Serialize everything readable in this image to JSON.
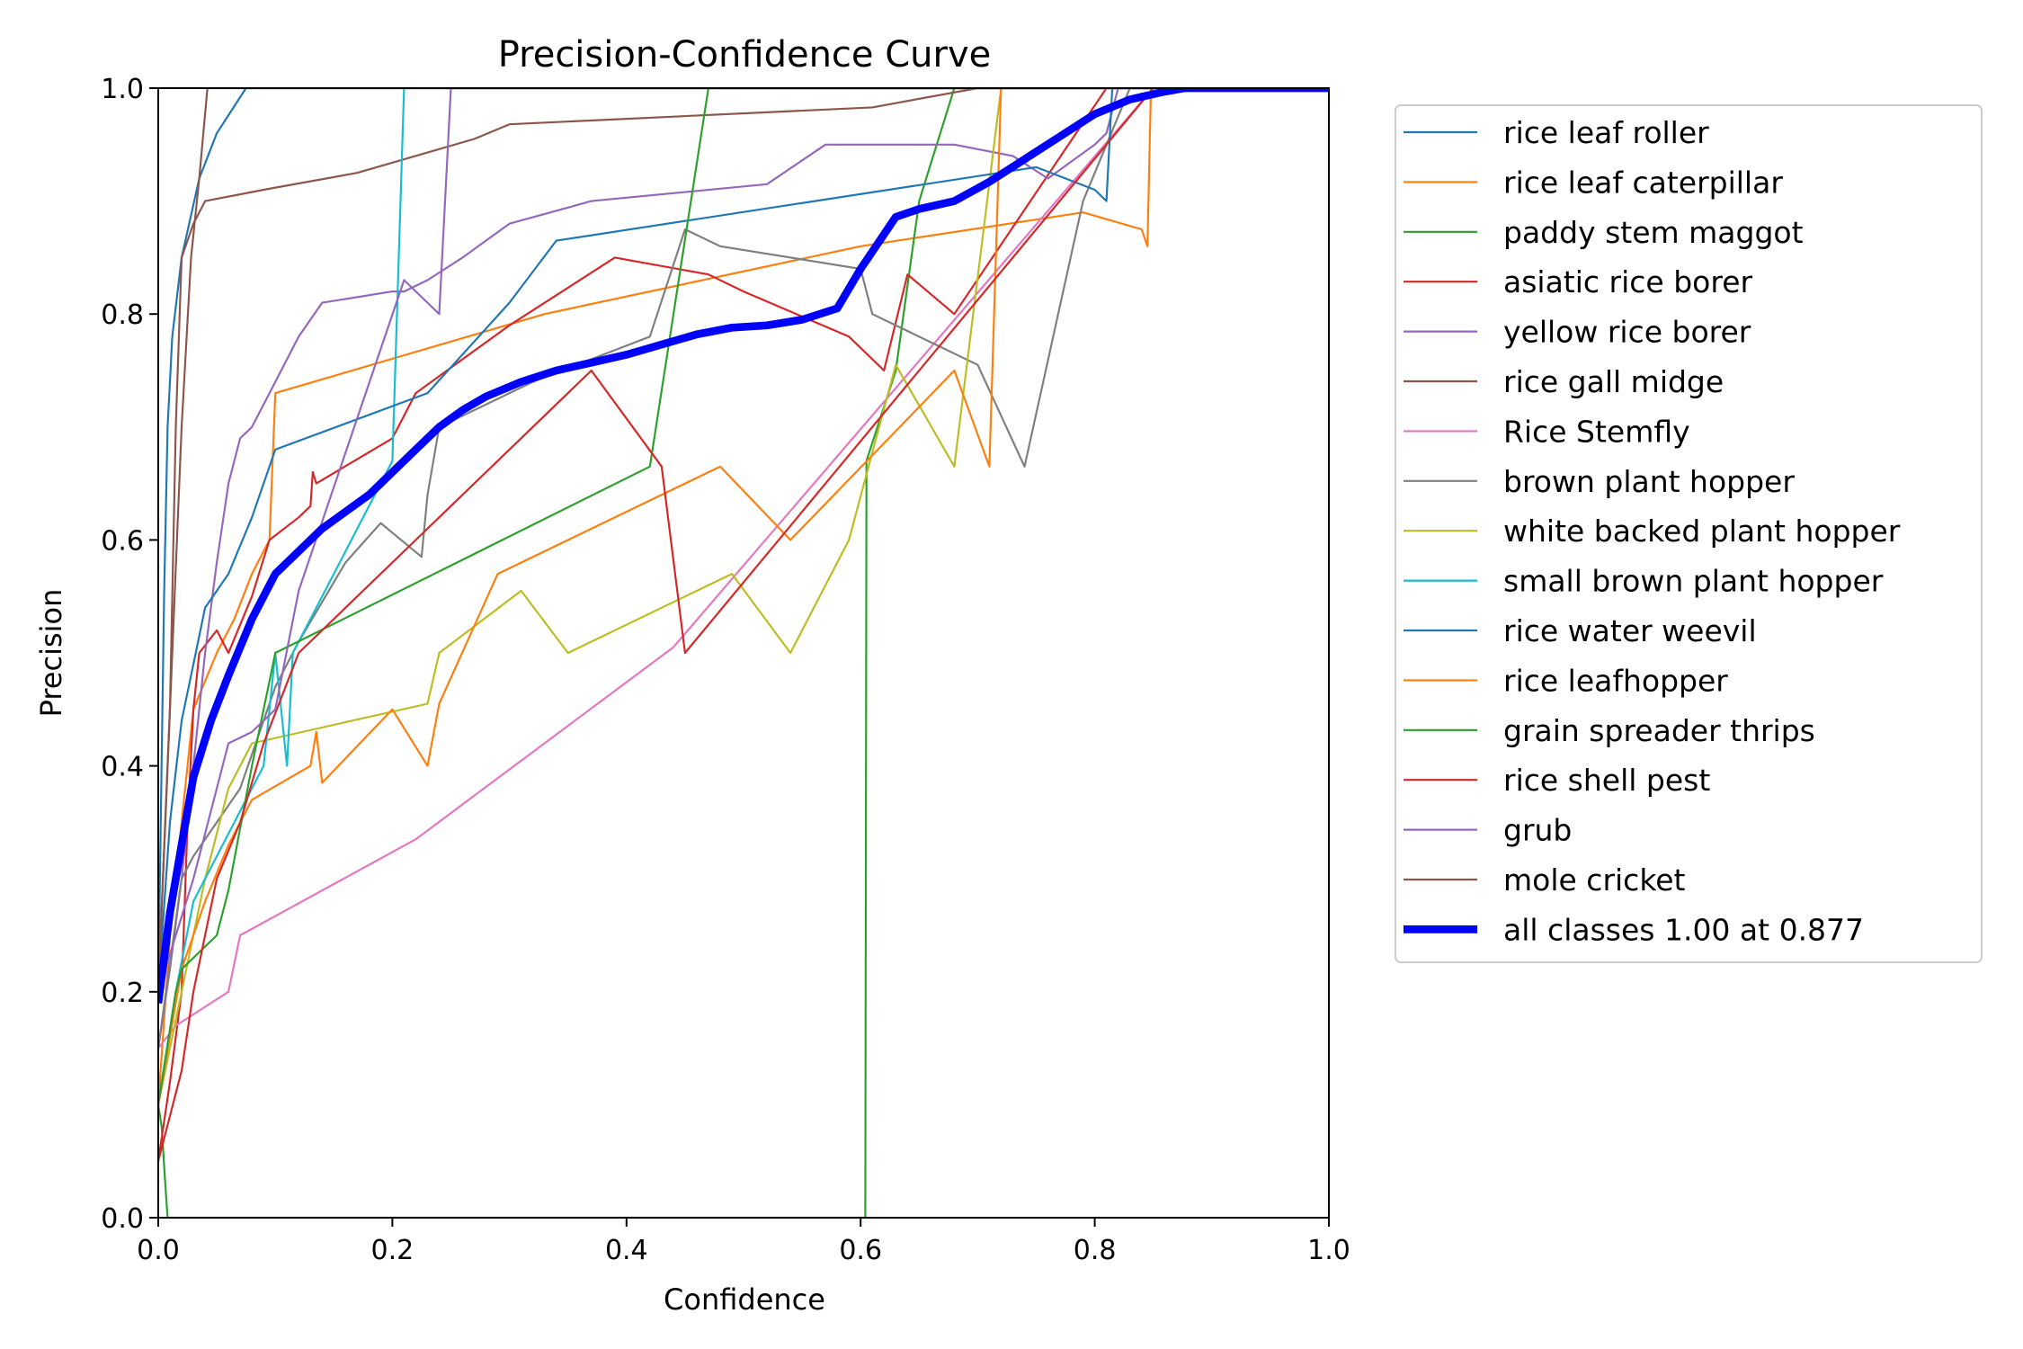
{
  "chart_data": {
    "type": "line",
    "title": "Precision-Confidence Curve",
    "xlabel": "Confidence",
    "ylabel": "Precision",
    "xlim": [
      0,
      1
    ],
    "ylim": [
      0,
      1
    ],
    "xticks": [
      "0.0",
      "0.2",
      "0.4",
      "0.6",
      "0.8",
      "1.0"
    ],
    "yticks": [
      "0.0",
      "0.2",
      "0.4",
      "0.6",
      "0.8",
      "1.0"
    ],
    "grid": false,
    "legend_position": "outside-right",
    "series": [
      {
        "name": "rice leaf roller",
        "color": "#1f77b4",
        "width": 1.5,
        "points": [
          [
            0,
            0.2
          ],
          [
            0.005,
            0.55
          ],
          [
            0.008,
            0.7
          ],
          [
            0.012,
            0.78
          ],
          [
            0.02,
            0.85
          ],
          [
            0.035,
            0.92
          ],
          [
            0.05,
            0.96
          ],
          [
            0.075,
            1.0
          ],
          [
            1,
            1.0
          ]
        ]
      },
      {
        "name": "rice leaf caterpillar",
        "color": "#ff7f0e",
        "width": 1.5,
        "points": [
          [
            0,
            0.1
          ],
          [
            0.01,
            0.25
          ],
          [
            0.02,
            0.35
          ],
          [
            0.03,
            0.45
          ],
          [
            0.05,
            0.5
          ],
          [
            0.065,
            0.53
          ],
          [
            0.08,
            0.57
          ],
          [
            0.095,
            0.6
          ],
          [
            0.1,
            0.73
          ],
          [
            0.33,
            0.8
          ],
          [
            0.6,
            0.86
          ],
          [
            0.79,
            0.89
          ],
          [
            0.84,
            0.875
          ],
          [
            0.845,
            0.86
          ],
          [
            0.848,
            1.0
          ],
          [
            1,
            1.0
          ]
        ]
      },
      {
        "name": "paddy stem maggot",
        "color": "#2ca02c",
        "width": 1.5,
        "points": [
          [
            0,
            0.1
          ],
          [
            0.003,
            0.08
          ],
          [
            0.006,
            0.03
          ],
          [
            0.008,
            0.0
          ],
          [
            0.604,
            0.0
          ],
          [
            0.605,
            0.67
          ],
          [
            0.63,
            0.75
          ],
          [
            0.65,
            0.9
          ],
          [
            0.68,
            1.0
          ],
          [
            1,
            1.0
          ]
        ]
      },
      {
        "name": "asiatic rice borer",
        "color": "#d62728",
        "width": 1.5,
        "points": [
          [
            0,
            0.05
          ],
          [
            0.01,
            0.12
          ],
          [
            0.02,
            0.2
          ],
          [
            0.025,
            0.35
          ],
          [
            0.03,
            0.45
          ],
          [
            0.035,
            0.5
          ],
          [
            0.05,
            0.52
          ],
          [
            0.06,
            0.5
          ],
          [
            0.08,
            0.55
          ],
          [
            0.095,
            0.6
          ],
          [
            0.12,
            0.62
          ],
          [
            0.13,
            0.63
          ],
          [
            0.132,
            0.66
          ],
          [
            0.135,
            0.65
          ],
          [
            0.2,
            0.69
          ],
          [
            0.22,
            0.73
          ],
          [
            0.3,
            0.79
          ],
          [
            0.39,
            0.85
          ],
          [
            0.47,
            0.835
          ],
          [
            0.5,
            0.82
          ],
          [
            0.59,
            0.78
          ],
          [
            0.62,
            0.75
          ],
          [
            0.64,
            0.835
          ],
          [
            0.68,
            0.8
          ],
          [
            0.81,
            1.0
          ],
          [
            1,
            1.0
          ]
        ]
      },
      {
        "name": "yellow rice borer",
        "color": "#9467bd",
        "width": 1.5,
        "points": [
          [
            0,
            0.15
          ],
          [
            0.01,
            0.22
          ],
          [
            0.02,
            0.3
          ],
          [
            0.03,
            0.4
          ],
          [
            0.04,
            0.5
          ],
          [
            0.05,
            0.58
          ],
          [
            0.06,
            0.65
          ],
          [
            0.07,
            0.69
          ],
          [
            0.08,
            0.7
          ],
          [
            0.09,
            0.72
          ],
          [
            0.1,
            0.74
          ],
          [
            0.12,
            0.78
          ],
          [
            0.14,
            0.81
          ],
          [
            0.2,
            0.82
          ],
          [
            0.21,
            0.82
          ],
          [
            0.23,
            0.83
          ],
          [
            0.26,
            0.85
          ],
          [
            0.3,
            0.88
          ],
          [
            0.37,
            0.9
          ],
          [
            0.52,
            0.915
          ],
          [
            0.57,
            0.95
          ],
          [
            0.68,
            0.95
          ],
          [
            0.73,
            0.94
          ],
          [
            0.76,
            0.92
          ],
          [
            0.8,
            0.95
          ],
          [
            0.81,
            0.96
          ],
          [
            0.82,
            1.0
          ],
          [
            1,
            1.0
          ]
        ]
      },
      {
        "name": "rice gall midge",
        "color": "#8c564b",
        "width": 1.5,
        "points": [
          [
            0,
            0.2
          ],
          [
            0.01,
            0.45
          ],
          [
            0.015,
            0.7
          ],
          [
            0.02,
            0.85
          ],
          [
            0.03,
            0.88
          ],
          [
            0.04,
            0.9
          ],
          [
            0.09,
            0.91
          ],
          [
            0.17,
            0.925
          ],
          [
            0.27,
            0.955
          ],
          [
            0.3,
            0.968
          ],
          [
            0.61,
            0.983
          ],
          [
            0.7,
            1.0
          ],
          [
            1,
            1.0
          ]
        ]
      },
      {
        "name": "Rice Stemfly",
        "color": "#e377c2",
        "width": 1.5,
        "points": [
          [
            0,
            0.15
          ],
          [
            0.015,
            0.17
          ],
          [
            0.06,
            0.2
          ],
          [
            0.07,
            0.25
          ],
          [
            0.22,
            0.335
          ],
          [
            0.44,
            0.505
          ],
          [
            0.85,
            1.0
          ],
          [
            1,
            1.0
          ]
        ]
      },
      {
        "name": "brown plant hopper",
        "color": "#7f7f7f",
        "width": 1.5,
        "points": [
          [
            0,
            0.15
          ],
          [
            0.02,
            0.3
          ],
          [
            0.03,
            0.32
          ],
          [
            0.05,
            0.35
          ],
          [
            0.07,
            0.38
          ],
          [
            0.1,
            0.47
          ],
          [
            0.12,
            0.51
          ],
          [
            0.16,
            0.58
          ],
          [
            0.19,
            0.615
          ],
          [
            0.225,
            0.585
          ],
          [
            0.23,
            0.64
          ],
          [
            0.24,
            0.7
          ],
          [
            0.32,
            0.74
          ],
          [
            0.42,
            0.78
          ],
          [
            0.45,
            0.875
          ],
          [
            0.48,
            0.86
          ],
          [
            0.6,
            0.84
          ],
          [
            0.61,
            0.8
          ],
          [
            0.7,
            0.755
          ],
          [
            0.74,
            0.665
          ],
          [
            0.79,
            0.9
          ],
          [
            0.83,
            1.0
          ],
          [
            1,
            1.0
          ]
        ]
      },
      {
        "name": "white backed plant hopper",
        "color": "#bcbd22",
        "width": 1.5,
        "points": [
          [
            0,
            0.1
          ],
          [
            0.02,
            0.2
          ],
          [
            0.04,
            0.3
          ],
          [
            0.06,
            0.38
          ],
          [
            0.08,
            0.42
          ],
          [
            0.23,
            0.455
          ],
          [
            0.24,
            0.5
          ],
          [
            0.31,
            0.555
          ],
          [
            0.35,
            0.5
          ],
          [
            0.49,
            0.57
          ],
          [
            0.54,
            0.5
          ],
          [
            0.59,
            0.6
          ],
          [
            0.63,
            0.755
          ],
          [
            0.68,
            0.665
          ],
          [
            0.72,
            1.0
          ],
          [
            1,
            1.0
          ]
        ]
      },
      {
        "name": "small brown plant hopper",
        "color": "#17becf",
        "width": 1.5,
        "points": [
          [
            0,
            0.1
          ],
          [
            0.015,
            0.2
          ],
          [
            0.03,
            0.28
          ],
          [
            0.06,
            0.34
          ],
          [
            0.09,
            0.4
          ],
          [
            0.1,
            0.5
          ],
          [
            0.11,
            0.4
          ],
          [
            0.115,
            0.5
          ],
          [
            0.15,
            0.57
          ],
          [
            0.2,
            0.67
          ],
          [
            0.21,
            1.0
          ],
          [
            1,
            1.0
          ]
        ]
      },
      {
        "name": "rice water weevil",
        "color": "#1f77b4",
        "width": 1.5,
        "points": [
          [
            0,
            0.2
          ],
          [
            0.01,
            0.35
          ],
          [
            0.02,
            0.44
          ],
          [
            0.03,
            0.49
          ],
          [
            0.04,
            0.54
          ],
          [
            0.06,
            0.57
          ],
          [
            0.08,
            0.62
          ],
          [
            0.1,
            0.68
          ],
          [
            0.23,
            0.73
          ],
          [
            0.3,
            0.81
          ],
          [
            0.34,
            0.865
          ],
          [
            0.75,
            0.93
          ],
          [
            0.8,
            0.91
          ],
          [
            0.81,
            0.9
          ],
          [
            0.815,
            1.0
          ],
          [
            1,
            1.0
          ]
        ]
      },
      {
        "name": "rice leafhopper",
        "color": "#ff7f0e",
        "width": 1.5,
        "points": [
          [
            0,
            0.1
          ],
          [
            0.02,
            0.22
          ],
          [
            0.04,
            0.28
          ],
          [
            0.06,
            0.33
          ],
          [
            0.08,
            0.37
          ],
          [
            0.13,
            0.4
          ],
          [
            0.135,
            0.43
          ],
          [
            0.14,
            0.385
          ],
          [
            0.2,
            0.45
          ],
          [
            0.23,
            0.4
          ],
          [
            0.24,
            0.455
          ],
          [
            0.29,
            0.57
          ],
          [
            0.48,
            0.665
          ],
          [
            0.54,
            0.6
          ],
          [
            0.68,
            0.75
          ],
          [
            0.71,
            0.665
          ],
          [
            0.72,
            1.0
          ],
          [
            1,
            1.0
          ]
        ]
      },
      {
        "name": "grain spreader thrips",
        "color": "#2ca02c",
        "width": 1.5,
        "points": [
          [
            0,
            0.1
          ],
          [
            0.015,
            0.2
          ],
          [
            0.02,
            0.22
          ],
          [
            0.05,
            0.25
          ],
          [
            0.06,
            0.29
          ],
          [
            0.08,
            0.4
          ],
          [
            0.1,
            0.5
          ],
          [
            0.42,
            0.665
          ],
          [
            0.47,
            1.0
          ],
          [
            1,
            1.0
          ]
        ]
      },
      {
        "name": "rice shell pest",
        "color": "#d62728",
        "width": 1.5,
        "points": [
          [
            0,
            0.05
          ],
          [
            0.02,
            0.13
          ],
          [
            0.03,
            0.2
          ],
          [
            0.05,
            0.3
          ],
          [
            0.07,
            0.35
          ],
          [
            0.09,
            0.42
          ],
          [
            0.12,
            0.5
          ],
          [
            0.22,
            0.6
          ],
          [
            0.37,
            0.75
          ],
          [
            0.43,
            0.665
          ],
          [
            0.45,
            0.5
          ],
          [
            0.85,
            1.0
          ],
          [
            1,
            1.0
          ]
        ]
      },
      {
        "name": "grub",
        "color": "#9467bd",
        "width": 1.5,
        "points": [
          [
            0,
            0.2
          ],
          [
            0.03,
            0.3
          ],
          [
            0.06,
            0.42
          ],
          [
            0.08,
            0.43
          ],
          [
            0.1,
            0.45
          ],
          [
            0.12,
            0.555
          ],
          [
            0.21,
            0.83
          ],
          [
            0.23,
            0.81
          ],
          [
            0.24,
            0.8
          ],
          [
            0.25,
            1.0
          ],
          [
            1,
            1.0
          ]
        ]
      },
      {
        "name": "mole cricket",
        "color": "#8c564b",
        "width": 1.5,
        "points": [
          [
            0,
            0.2
          ],
          [
            0.01,
            0.45
          ],
          [
            0.02,
            0.7
          ],
          [
            0.028,
            0.85
          ],
          [
            0.035,
            0.92
          ],
          [
            0.042,
            1.0
          ],
          [
            1,
            1.0
          ]
        ]
      },
      {
        "name": "all classes 1.00 at 0.877",
        "color": "#0000ff",
        "width": 6,
        "points": [
          [
            0,
            0.19
          ],
          [
            0.01,
            0.27
          ],
          [
            0.02,
            0.33
          ],
          [
            0.03,
            0.39
          ],
          [
            0.045,
            0.44
          ],
          [
            0.06,
            0.48
          ],
          [
            0.08,
            0.53
          ],
          [
            0.1,
            0.57
          ],
          [
            0.12,
            0.59
          ],
          [
            0.14,
            0.61
          ],
          [
            0.16,
            0.625
          ],
          [
            0.18,
            0.64
          ],
          [
            0.2,
            0.66
          ],
          [
            0.22,
            0.68
          ],
          [
            0.24,
            0.7
          ],
          [
            0.26,
            0.715
          ],
          [
            0.28,
            0.727
          ],
          [
            0.31,
            0.74
          ],
          [
            0.34,
            0.75
          ],
          [
            0.37,
            0.757
          ],
          [
            0.4,
            0.764
          ],
          [
            0.43,
            0.773
          ],
          [
            0.46,
            0.782
          ],
          [
            0.49,
            0.788
          ],
          [
            0.52,
            0.79
          ],
          [
            0.55,
            0.795
          ],
          [
            0.58,
            0.805
          ],
          [
            0.6,
            0.84
          ],
          [
            0.63,
            0.886
          ],
          [
            0.65,
            0.893
          ],
          [
            0.68,
            0.9
          ],
          [
            0.71,
            0.917
          ],
          [
            0.74,
            0.937
          ],
          [
            0.77,
            0.957
          ],
          [
            0.8,
            0.977
          ],
          [
            0.83,
            0.99
          ],
          [
            0.86,
            0.997
          ],
          [
            0.877,
            1.0
          ],
          [
            1,
            1.0
          ]
        ]
      }
    ]
  }
}
